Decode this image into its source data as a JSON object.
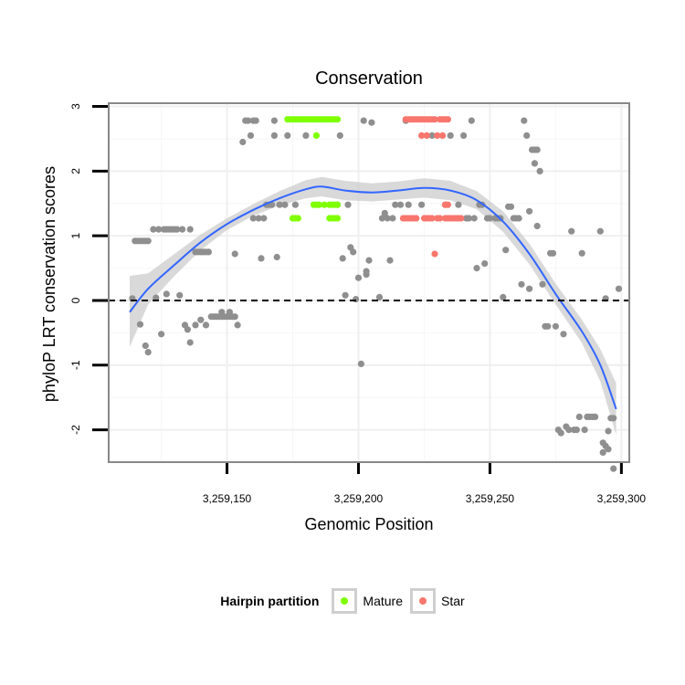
{
  "chart_data": {
    "type": "scatter",
    "title": "Conservation",
    "xlabel": "Genomic Position",
    "ylabel": "phyloP LRT conservation scores",
    "xlim": [
      3259105,
      3259303
    ],
    "ylim": [
      -2.5,
      3.05
    ],
    "x_ticks": [
      3259150,
      3259200,
      3259250,
      3259300
    ],
    "x_tick_labels": [
      "3,259,150",
      "3,259,200",
      "3,259,250",
      "3,259,300"
    ],
    "y_ticks": [
      -2,
      -1,
      0,
      1,
      2,
      3
    ],
    "y_tick_labels": [
      "-2",
      "-1",
      "0",
      "1",
      "2",
      "3"
    ],
    "reference_line": {
      "y": 0,
      "style": "dashed"
    },
    "grid": true,
    "legend": {
      "title": "Hairpin partition",
      "position": "bottom",
      "entries": [
        {
          "label": "Mature",
          "color": "#7fff00"
        },
        {
          "label": "Star",
          "color": "#f8766d"
        }
      ]
    },
    "colors": {
      "other": "#8f8f8f",
      "Mature": "#7fff00",
      "Star": "#f8766d",
      "smooth": "#3366ff",
      "ribbon": "#cccccc"
    },
    "series": [
      {
        "name": "other",
        "points": [
          [
            3259114,
            0.03
          ],
          [
            3259115,
            0.92
          ],
          [
            3259116,
            0.92
          ],
          [
            3259117,
            0.92
          ],
          [
            3259118,
            0.92
          ],
          [
            3259119,
            0.92
          ],
          [
            3259120,
            0.92
          ],
          [
            3259117,
            -0.37
          ],
          [
            3259119,
            -0.7
          ],
          [
            3259120,
            -0.8
          ],
          [
            3259122,
            1.1
          ],
          [
            3259123,
            0.04
          ],
          [
            3259124,
            1.1
          ],
          [
            3259125,
            -0.52
          ],
          [
            3259126,
            1.1
          ],
          [
            3259127,
            1.1
          ],
          [
            3259128,
            1.1
          ],
          [
            3259129,
            1.1
          ],
          [
            3259130,
            1.1
          ],
          [
            3259131,
            1.1
          ],
          [
            3259127,
            0.1
          ],
          [
            3259132,
            0.08
          ],
          [
            3259134,
            -0.38
          ],
          [
            3259135,
            -0.45
          ],
          [
            3259136,
            -0.65
          ],
          [
            3259133,
            1.1
          ],
          [
            3259136,
            1.1
          ],
          [
            3259138,
            0.75
          ],
          [
            3259139,
            0.75
          ],
          [
            3259140,
            0.75
          ],
          [
            3259141,
            0.75
          ],
          [
            3259142,
            0.75
          ],
          [
            3259143,
            0.75
          ],
          [
            3259138,
            -0.38
          ],
          [
            3259140,
            -0.3
          ],
          [
            3259142,
            -0.38
          ],
          [
            3259144,
            -0.25
          ],
          [
            3259145,
            -0.25
          ],
          [
            3259146,
            -0.25
          ],
          [
            3259147,
            -0.25
          ],
          [
            3259148,
            -0.25
          ],
          [
            3259149,
            -0.25
          ],
          [
            3259150,
            -0.25
          ],
          [
            3259151,
            -0.25
          ],
          [
            3259152,
            -0.25
          ],
          [
            3259153,
            -0.25
          ],
          [
            3259154,
            -0.38
          ],
          [
            3259148,
            -0.18
          ],
          [
            3259151,
            -0.18
          ],
          [
            3259153,
            0.72
          ],
          [
            3259156,
            2.45
          ],
          [
            3259157,
            2.78
          ],
          [
            3259158,
            2.78
          ],
          [
            3259159,
            2.55
          ],
          [
            3259160,
            2.78
          ],
          [
            3259161,
            2.78
          ],
          [
            3259160,
            1.27
          ],
          [
            3259162,
            1.27
          ],
          [
            3259163,
            0.65
          ],
          [
            3259164,
            1.27
          ],
          [
            3259165,
            1.48
          ],
          [
            3259166,
            1.48
          ],
          [
            3259167,
            1.48
          ],
          [
            3259168,
            2.78
          ],
          [
            3259168,
            2.55
          ],
          [
            3259169,
            0.67
          ],
          [
            3259170,
            1.48
          ],
          [
            3259172,
            1.48
          ],
          [
            3259173,
            2.55
          ],
          [
            3259176,
            1.48
          ],
          [
            3259180,
            2.55
          ],
          [
            3259192,
            1.48
          ],
          [
            3259193,
            2.55
          ],
          [
            3259194,
            0.65
          ],
          [
            3259195,
            0.08
          ],
          [
            3259196,
            1.48
          ],
          [
            3259197,
            0.82
          ],
          [
            3259198,
            0.75
          ],
          [
            3259199,
            0.02
          ],
          [
            3259200,
            0.35
          ],
          [
            3259201,
            -0.98
          ],
          [
            3259202,
            2.78
          ],
          [
            3259203,
            0.45
          ],
          [
            3259203,
            0.4
          ],
          [
            3259204,
            0.62
          ],
          [
            3259205,
            2.75
          ],
          [
            3259208,
            0.05
          ],
          [
            3259209,
            1.27
          ],
          [
            3259210,
            1.35
          ],
          [
            3259211,
            1.27
          ],
          [
            3259212,
            0.62
          ],
          [
            3259213,
            1.27
          ],
          [
            3259214,
            1.48
          ],
          [
            3259216,
            1.48
          ],
          [
            3259218,
            2.78
          ],
          [
            3259219,
            1.48
          ],
          [
            3259224,
            1.48
          ],
          [
            3259228,
            2.55
          ],
          [
            3259233,
            1.48
          ],
          [
            3259235,
            2.55
          ],
          [
            3259238,
            1.48
          ],
          [
            3259240,
            2.55
          ],
          [
            3259241,
            1.27
          ],
          [
            3259242,
            1.27
          ],
          [
            3259243,
            2.78
          ],
          [
            3259244,
            1.27
          ],
          [
            3259245,
            0.5
          ],
          [
            3259246,
            1.48
          ],
          [
            3259247,
            1.48
          ],
          [
            3259248,
            0.57
          ],
          [
            3259249,
            1.27
          ],
          [
            3259250,
            1.27
          ],
          [
            3259252,
            1.27
          ],
          [
            3259253,
            1.27
          ],
          [
            3259254,
            1.27
          ],
          [
            3259255,
            0.05
          ],
          [
            3259256,
            0.78
          ],
          [
            3259257,
            1.45
          ],
          [
            3259258,
            1.45
          ],
          [
            3259259,
            1.27
          ],
          [
            3259260,
            1.27
          ],
          [
            3259261,
            1.27
          ],
          [
            3259262,
            0.25
          ],
          [
            3259263,
            2.78
          ],
          [
            3259264,
            2.55
          ],
          [
            3259265,
            1.38
          ],
          [
            3259265,
            0.18
          ],
          [
            3259266,
            2.33
          ],
          [
            3259267,
            2.33
          ],
          [
            3259268,
            2.33
          ],
          [
            3259267,
            2.12
          ],
          [
            3259268,
            1.15
          ],
          [
            3259269,
            2.0
          ],
          [
            3259270,
            0.25
          ],
          [
            3259271,
            -0.4
          ],
          [
            3259272,
            -0.4
          ],
          [
            3259273,
            0.73
          ],
          [
            3259274,
            0.73
          ],
          [
            3259275,
            -0.4
          ],
          [
            3259276,
            -2.0
          ],
          [
            3259277,
            -2.05
          ],
          [
            3259278,
            -0.52
          ],
          [
            3259279,
            -1.95
          ],
          [
            3259280,
            -2.0
          ],
          [
            3259281,
            1.07
          ],
          [
            3259282,
            -2.0
          ],
          [
            3259283,
            -2.0
          ],
          [
            3259284,
            -1.8
          ],
          [
            3259285,
            0.73
          ],
          [
            3259286,
            -2.0
          ],
          [
            3259287,
            -1.8
          ],
          [
            3259288,
            -1.8
          ],
          [
            3259289,
            -1.8
          ],
          [
            3259290,
            -1.8
          ],
          [
            3259292,
            1.07
          ],
          [
            3259293,
            -2.2
          ],
          [
            3259294,
            0.03
          ],
          [
            3259295,
            -2.02
          ],
          [
            3259296,
            -1.82
          ],
          [
            3259297,
            -1.82
          ],
          [
            3259295,
            -2.3
          ],
          [
            3259293,
            -2.35
          ],
          [
            3259294,
            -2.25
          ],
          [
            3259299,
            0.18
          ],
          [
            3259297,
            -2.6
          ]
        ]
      },
      {
        "name": "Mature",
        "points": [
          [
            3259173,
            2.8
          ],
          [
            3259174,
            2.8
          ],
          [
            3259175,
            2.8
          ],
          [
            3259176,
            2.8
          ],
          [
            3259177,
            2.8
          ],
          [
            3259178,
            2.8
          ],
          [
            3259179,
            2.8
          ],
          [
            3259180,
            2.8
          ],
          [
            3259181,
            2.8
          ],
          [
            3259182,
            2.8
          ],
          [
            3259183,
            2.8
          ],
          [
            3259184,
            2.8
          ],
          [
            3259185,
            2.8
          ],
          [
            3259186,
            2.8
          ],
          [
            3259187,
            2.8
          ],
          [
            3259188,
            2.8
          ],
          [
            3259189,
            2.8
          ],
          [
            3259190,
            2.8
          ],
          [
            3259191,
            2.8
          ],
          [
            3259192,
            2.8
          ],
          [
            3259184,
            2.55
          ],
          [
            3259175,
            1.27
          ],
          [
            3259176,
            1.27
          ],
          [
            3259177,
            1.27
          ],
          [
            3259183,
            1.48
          ],
          [
            3259184,
            1.48
          ],
          [
            3259185,
            1.48
          ],
          [
            3259187,
            1.48
          ],
          [
            3259189,
            1.48
          ],
          [
            3259190,
            1.48
          ],
          [
            3259191,
            1.48
          ],
          [
            3259192,
            1.48
          ],
          [
            3259189,
            1.27
          ],
          [
            3259190,
            1.27
          ],
          [
            3259191,
            1.27
          ],
          [
            3259192,
            1.27
          ]
        ]
      },
      {
        "name": "Star",
        "points": [
          [
            3259218,
            2.8
          ],
          [
            3259219,
            2.8
          ],
          [
            3259220,
            2.8
          ],
          [
            3259221,
            2.8
          ],
          [
            3259222,
            2.8
          ],
          [
            3259223,
            2.8
          ],
          [
            3259224,
            2.8
          ],
          [
            3259225,
            2.8
          ],
          [
            3259226,
            2.8
          ],
          [
            3259227,
            2.8
          ],
          [
            3259228,
            2.8
          ],
          [
            3259229,
            2.8
          ],
          [
            3259231,
            2.8
          ],
          [
            3259232,
            2.8
          ],
          [
            3259233,
            2.8
          ],
          [
            3259234,
            2.8
          ],
          [
            3259224,
            2.55
          ],
          [
            3259226,
            2.55
          ],
          [
            3259230,
            2.55
          ],
          [
            3259232,
            2.55
          ],
          [
            3259217,
            1.27
          ],
          [
            3259218,
            1.27
          ],
          [
            3259219,
            1.27
          ],
          [
            3259220,
            1.27
          ],
          [
            3259221,
            1.27
          ],
          [
            3259222,
            1.27
          ],
          [
            3259225,
            1.27
          ],
          [
            3259226,
            1.27
          ],
          [
            3259227,
            1.27
          ],
          [
            3259228,
            1.27
          ],
          [
            3259230,
            1.27
          ],
          [
            3259231,
            1.27
          ],
          [
            3259233,
            1.27
          ],
          [
            3259234,
            1.27
          ],
          [
            3259235,
            1.27
          ],
          [
            3259236,
            1.27
          ],
          [
            3259237,
            1.27
          ],
          [
            3259238,
            1.27
          ],
          [
            3259239,
            1.27
          ],
          [
            3259229,
            0.72
          ],
          [
            3259233,
            1.48
          ],
          [
            3259234,
            1.48
          ]
        ]
      }
    ],
    "smooth": {
      "method": "loess",
      "x": [
        3259113,
        3259120,
        3259130,
        3259140,
        3259150,
        3259160,
        3259170,
        3259180,
        3259186,
        3259195,
        3259205,
        3259215,
        3259225,
        3259235,
        3259245,
        3259255,
        3259265,
        3259275,
        3259285,
        3259292,
        3259298
      ],
      "y": [
        -0.18,
        0.18,
        0.55,
        0.9,
        1.18,
        1.4,
        1.58,
        1.72,
        1.76,
        1.7,
        1.67,
        1.7,
        1.74,
        1.7,
        1.55,
        1.22,
        0.72,
        0.1,
        -0.48,
        -1.0,
        -1.68
      ],
      "lower": [
        -0.72,
        -0.06,
        0.38,
        0.78,
        1.09,
        1.31,
        1.47,
        1.58,
        1.61,
        1.55,
        1.53,
        1.56,
        1.59,
        1.55,
        1.41,
        1.06,
        0.56,
        -0.06,
        -0.66,
        -1.25,
        -2.08
      ],
      "upper": [
        0.38,
        0.42,
        0.72,
        1.02,
        1.27,
        1.49,
        1.69,
        1.86,
        1.91,
        1.85,
        1.81,
        1.84,
        1.89,
        1.85,
        1.69,
        1.38,
        0.88,
        0.26,
        -0.3,
        -0.75,
        -1.28
      ]
    }
  }
}
